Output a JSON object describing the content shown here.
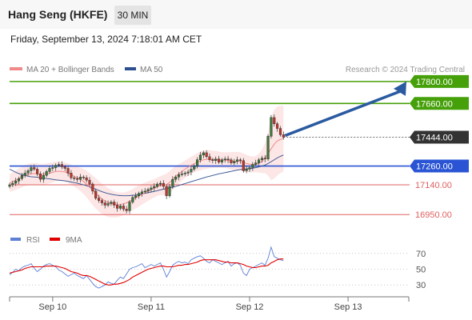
{
  "header": {
    "title": "Hang Seng (HKFE)",
    "timeframe": "30 MIN",
    "datetime": "Friday, September 13, 2024 7:18:01 AM CET"
  },
  "watermark": "Research © 2024 Trading Central",
  "colors": {
    "resistance": "#46a00a",
    "support": "#2a54d4",
    "minor": "#e06060",
    "current": "#333333",
    "arrow": "#2a5aa0",
    "ma20": "#f08a8a",
    "ma50": "#2e4f8f",
    "rsi": "#5d7fd4",
    "rsi_ma": "#e00000",
    "bull": "#3a7a3a",
    "bear": "#c0392b"
  },
  "chart_data": [
    {
      "type": "candlestick",
      "legend": [
        {
          "label": "MA 20 + Bollinger Bands",
          "color": "#f08a8a"
        },
        {
          "label": "MA 50",
          "color": "#2e4f8f"
        }
      ],
      "legend_position": "top-left",
      "ylim": [
        16900,
        17830
      ],
      "xlim": [
        0,
        130
      ],
      "x_ticks": [
        {
          "x": 14,
          "label": "Sep 10"
        },
        {
          "x": 46,
          "label": "Sep 11"
        },
        {
          "x": 78,
          "label": "Sep 12"
        },
        {
          "x": 110,
          "label": "Sep 13"
        }
      ],
      "levels": [
        {
          "value": 17800,
          "label": "17800.00",
          "kind": "resistance"
        },
        {
          "value": 17660,
          "label": "17660.00",
          "kind": "resistance"
        },
        {
          "value": 17444,
          "label": "17444.00",
          "kind": "current"
        },
        {
          "value": 17260,
          "label": "17260.00",
          "kind": "support"
        },
        {
          "value": 17140,
          "label": "17140.00",
          "kind": "minor"
        },
        {
          "value": 16950,
          "label": "16950.00",
          "kind": "minor"
        }
      ],
      "close": [
        17140,
        17150,
        17165,
        17180,
        17200,
        17215,
        17230,
        17250,
        17240,
        17210,
        17175,
        17200,
        17225,
        17245,
        17250,
        17265,
        17270,
        17255,
        17245,
        17215,
        17185,
        17180,
        17175,
        17190,
        17185,
        17170,
        17145,
        17100,
        17055,
        17040,
        17025,
        17010,
        17020,
        17030,
        17010,
        16990,
        17005,
        16985,
        16975,
        17030,
        17060,
        17070,
        17085,
        17095,
        17100,
        17110,
        17120,
        17130,
        17145,
        17150,
        17130,
        17070,
        17130,
        17175,
        17190,
        17205,
        17210,
        17215,
        17222,
        17240,
        17260,
        17300,
        17330,
        17345,
        17320,
        17300,
        17295,
        17305,
        17285,
        17300,
        17305,
        17300,
        17280,
        17290,
        17300,
        17295,
        17230,
        17240,
        17250,
        17270,
        17280,
        17300,
        17310,
        17305,
        17450,
        17570,
        17530,
        17500,
        17460,
        17444
      ],
      "ma20": [
        17150,
        17160,
        17170,
        17180,
        17190,
        17200,
        17205,
        17210,
        17212,
        17210,
        17205,
        17207,
        17210,
        17215,
        17220,
        17225,
        17227,
        17225,
        17222,
        17215,
        17205,
        17195,
        17185,
        17175,
        17162,
        17145,
        17125,
        17105,
        17085,
        17068,
        17050,
        17038,
        17028,
        17020,
        17015,
        17012,
        17015,
        17018,
        17025,
        17035,
        17045,
        17058,
        17068,
        17080,
        17090,
        17100,
        17110,
        17118,
        17128,
        17135,
        17140,
        17142,
        17155,
        17175,
        17195,
        17210,
        17225,
        17240,
        17252,
        17265,
        17275,
        17285,
        17292,
        17300,
        17302,
        17304,
        17303,
        17302,
        17300,
        17298,
        17297,
        17296,
        17293,
        17290,
        17290,
        17290,
        17282,
        17276,
        17272,
        17270,
        17272,
        17278,
        17290,
        17310,
        17340,
        17370,
        17400,
        17420,
        17430,
        17435
      ],
      "bb_width": [
        55,
        60,
        62,
        64,
        66,
        67,
        68,
        68,
        68,
        68,
        67,
        66,
        66,
        66,
        65,
        64,
        63,
        62,
        62,
        63,
        64,
        66,
        70,
        75,
        80,
        85,
        90,
        94,
        97,
        98,
        97,
        95,
        92,
        88,
        84,
        80,
        76,
        72,
        70,
        68,
        68,
        68,
        68,
        66,
        64,
        62,
        60,
        58,
        58,
        60,
        64,
        70,
        72,
        70,
        66,
        62,
        58,
        56,
        55,
        55,
        56,
        58,
        60,
        60,
        60,
        58,
        56,
        54,
        52,
        50,
        50,
        52,
        56,
        60,
        60,
        58,
        58,
        56,
        52,
        50,
        52,
        60,
        75,
        95,
        140,
        200,
        220,
        220,
        215,
        210
      ],
      "ma50": [
        17240,
        17230,
        17220,
        17212,
        17205,
        17200,
        17195,
        17192,
        17190,
        17188,
        17185,
        17183,
        17180,
        17178,
        17175,
        17172,
        17170,
        17168,
        17165,
        17162,
        17158,
        17154,
        17150,
        17145,
        17140,
        17134,
        17128,
        17120,
        17112,
        17104,
        17096,
        17090,
        17084,
        17080,
        17076,
        17073,
        17071,
        17070,
        17070,
        17071,
        17073,
        17075,
        17078,
        17082,
        17086,
        17090,
        17094,
        17098,
        17103,
        17108,
        17112,
        17116,
        17120,
        17125,
        17130,
        17136,
        17142,
        17148,
        17154,
        17160,
        17166,
        17172,
        17178,
        17184,
        17190,
        17195,
        17200,
        17205,
        17210,
        17214,
        17218,
        17222,
        17226,
        17230,
        17234,
        17238,
        17240,
        17242,
        17244,
        17246,
        17250,
        17254,
        17260,
        17266,
        17276,
        17288,
        17300,
        17312,
        17322,
        17330
      ]
    },
    {
      "type": "line",
      "legend": [
        {
          "label": "RSI",
          "color": "#5d7fd4"
        },
        {
          "label": "9MA",
          "color": "#e00000"
        }
      ],
      "ylim": [
        18,
        82
      ],
      "y_ticks": [
        70,
        50,
        30
      ],
      "rsi": [
        43,
        46,
        50,
        48,
        52,
        54,
        55,
        57,
        51,
        47,
        50,
        54,
        56,
        57,
        55,
        53,
        49,
        47,
        44,
        41,
        43,
        45,
        42,
        40,
        38,
        42,
        37,
        32,
        28,
        26,
        28,
        30,
        34,
        32,
        31,
        36,
        40,
        38,
        44,
        50,
        52,
        53,
        55,
        57,
        52,
        54,
        56,
        54,
        56,
        58,
        50,
        40,
        47,
        55,
        58,
        60,
        58,
        59,
        57,
        62,
        64,
        66,
        67,
        64,
        60,
        58,
        62,
        60,
        58,
        56,
        58,
        60,
        54,
        57,
        58,
        55,
        45,
        42,
        50,
        52,
        54,
        56,
        58,
        55,
        64,
        78,
        66,
        64,
        62,
        61
      ],
      "ma9": [
        45,
        46,
        47,
        48,
        49,
        51,
        52,
        53,
        53,
        53,
        53,
        53,
        54,
        54,
        54,
        54,
        53,
        52,
        51,
        49,
        47,
        46,
        45,
        43,
        42,
        42,
        41,
        39,
        37,
        35,
        33,
        31,
        30,
        30,
        31,
        31,
        32,
        33,
        35,
        37,
        40,
        42,
        44,
        46,
        48,
        50,
        51,
        52,
        53,
        54,
        54,
        53,
        53,
        53,
        54,
        55,
        55,
        56,
        56,
        57,
        58,
        59,
        61,
        62,
        62,
        62,
        62,
        62,
        61,
        60,
        59,
        59,
        58,
        58,
        58,
        57,
        56,
        54,
        53,
        52,
        52,
        53,
        54,
        54,
        55,
        58,
        60,
        62,
        63,
        63
      ]
    }
  ]
}
